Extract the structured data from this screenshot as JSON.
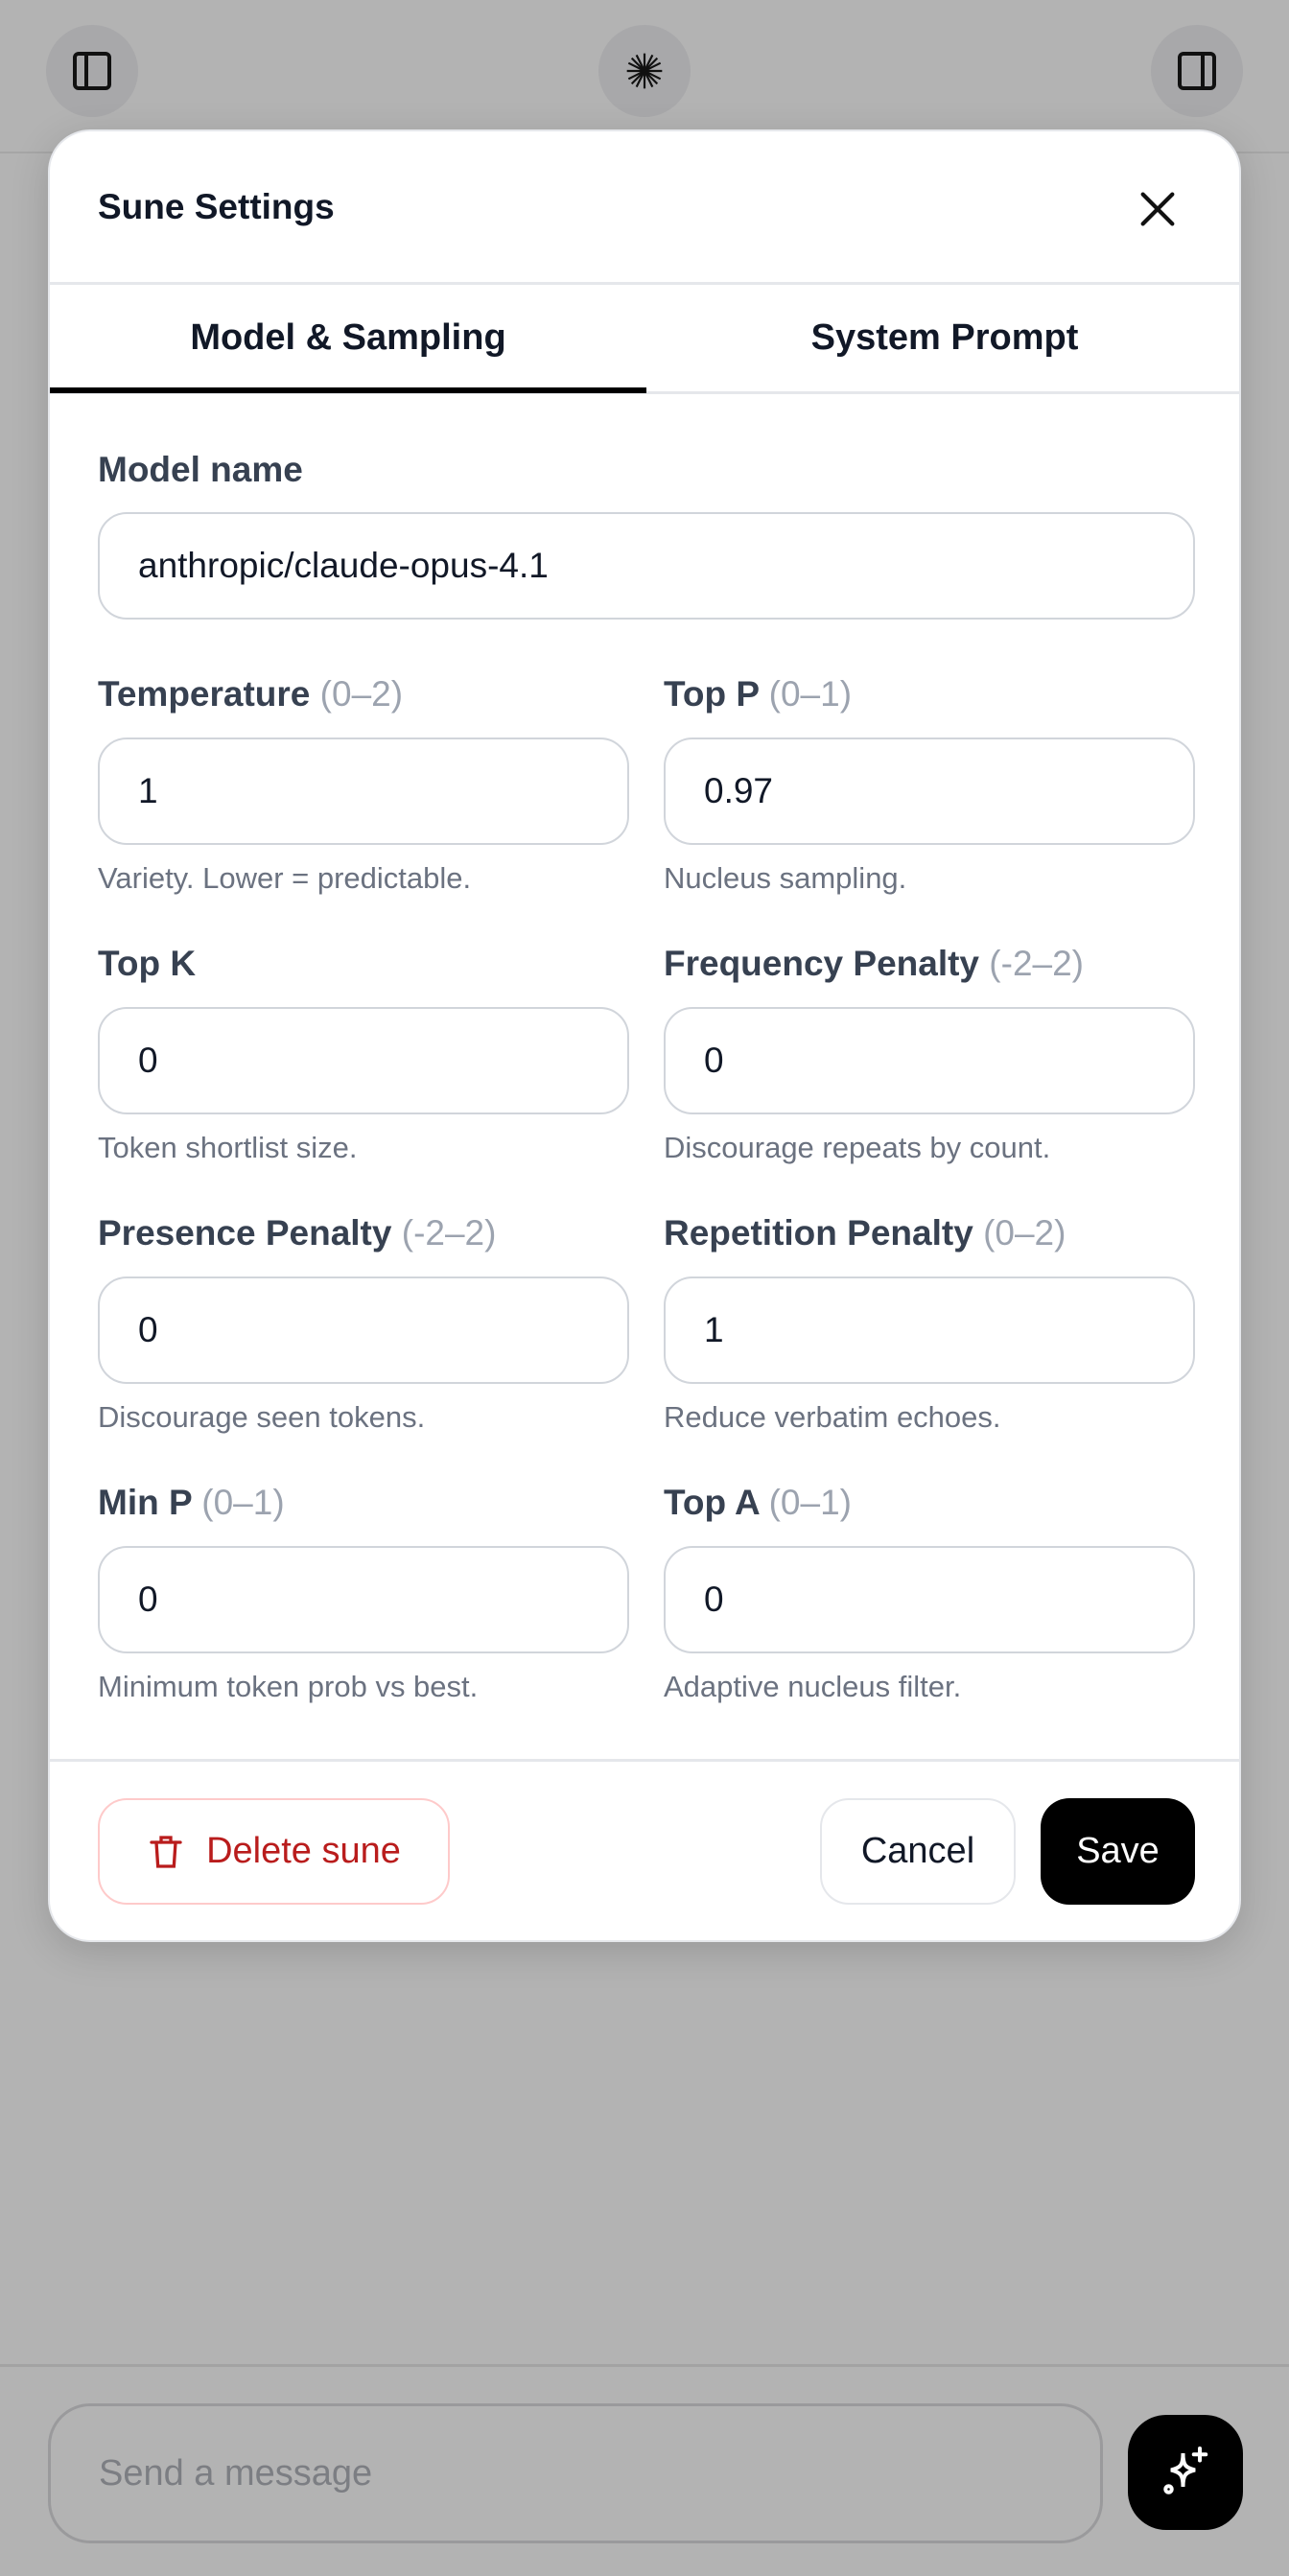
{
  "topbar": {
    "left_icon": "sidebar-left-icon",
    "center_icon": "sparkle-burst-icon",
    "right_icon": "sidebar-right-icon"
  },
  "modal": {
    "title": "Sune Settings",
    "tabs": [
      {
        "label": "Model & Sampling",
        "active": true
      },
      {
        "label": "System Prompt",
        "active": false
      }
    ],
    "model_name": {
      "label": "Model name",
      "value": "anthropic/claude-opus-4.1"
    },
    "fields": [
      {
        "label": "Temperature",
        "range": "(0–2)",
        "value": "1",
        "hint": "Variety. Lower = predictable."
      },
      {
        "label": "Top P",
        "range": "(0–1)",
        "value": "0.97",
        "hint": "Nucleus sampling."
      },
      {
        "label": "Top K",
        "range": "",
        "value": "0",
        "hint": "Token shortlist size."
      },
      {
        "label": "Frequency Penalty",
        "range": "(-2–2)",
        "value": "0",
        "hint": "Discourage repeats by count."
      },
      {
        "label": "Presence Penalty",
        "range": "(-2–2)",
        "value": "0",
        "hint": "Discourage seen tokens."
      },
      {
        "label": "Repetition Penalty",
        "range": "(0–2)",
        "value": "1",
        "hint": "Reduce verbatim echoes."
      },
      {
        "label": "Min P",
        "range": "(0–1)",
        "value": "0",
        "hint": "Minimum token prob vs best."
      },
      {
        "label": "Top A",
        "range": "(0–1)",
        "value": "0",
        "hint": "Adaptive nucleus filter."
      }
    ],
    "delete_label": "Delete sune",
    "cancel_label": "Cancel",
    "save_label": "Save"
  },
  "composer": {
    "placeholder": "Send a message"
  },
  "colors": {
    "danger": "#b91c1c",
    "danger_border": "#fecaca",
    "primary": "#000000"
  }
}
